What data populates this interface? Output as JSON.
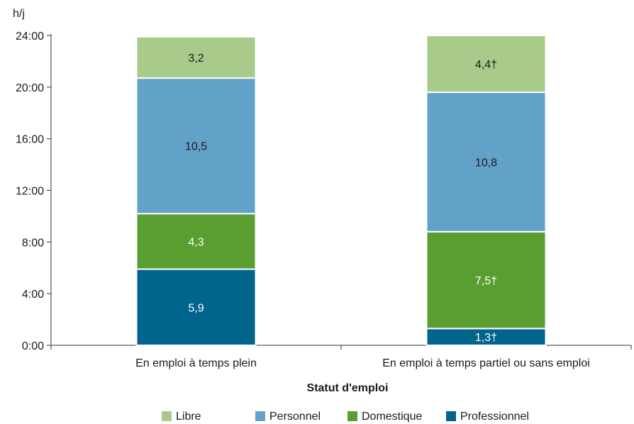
{
  "chart_data": {
    "type": "bar",
    "stacked": true,
    "ylabel": "h/j",
    "xlabel": "Statut d'emploi",
    "categories": [
      "En emploi à temps plein",
      "En emploi à temps partiel ou sans emploi"
    ],
    "ylim": [
      0,
      24
    ],
    "yticks": [
      0,
      4,
      8,
      12,
      16,
      20,
      24
    ],
    "ytick_labels": [
      "0:00",
      "4:00",
      "8:00",
      "12:00",
      "16:00",
      "20:00",
      "24:00"
    ],
    "series": [
      {
        "name": "Professionnel",
        "color": "#00648c",
        "label_color": "#ffffff",
        "values": [
          5.9,
          1.3
        ],
        "labels": [
          "5,9",
          "1,3†"
        ]
      },
      {
        "name": "Domestique",
        "color": "#5a9e32",
        "label_color": "#ffffff",
        "values": [
          4.3,
          7.5
        ],
        "labels": [
          "4,3",
          "7,5†"
        ]
      },
      {
        "name": "Personnel",
        "color": "#62a2c8",
        "label_color": "#1a1a1a",
        "values": [
          10.5,
          10.8
        ],
        "labels": [
          "10,5",
          "10,8"
        ]
      },
      {
        "name": "Libre",
        "color": "#a8cb8c",
        "label_color": "#1a1a1a",
        "values": [
          3.2,
          4.4
        ],
        "labels": [
          "3,2",
          "4,4†"
        ]
      }
    ],
    "legend_order": [
      "Libre",
      "Personnel",
      "Domestique",
      "Professionnel"
    ],
    "legend_position": "bottom",
    "grid": false
  }
}
